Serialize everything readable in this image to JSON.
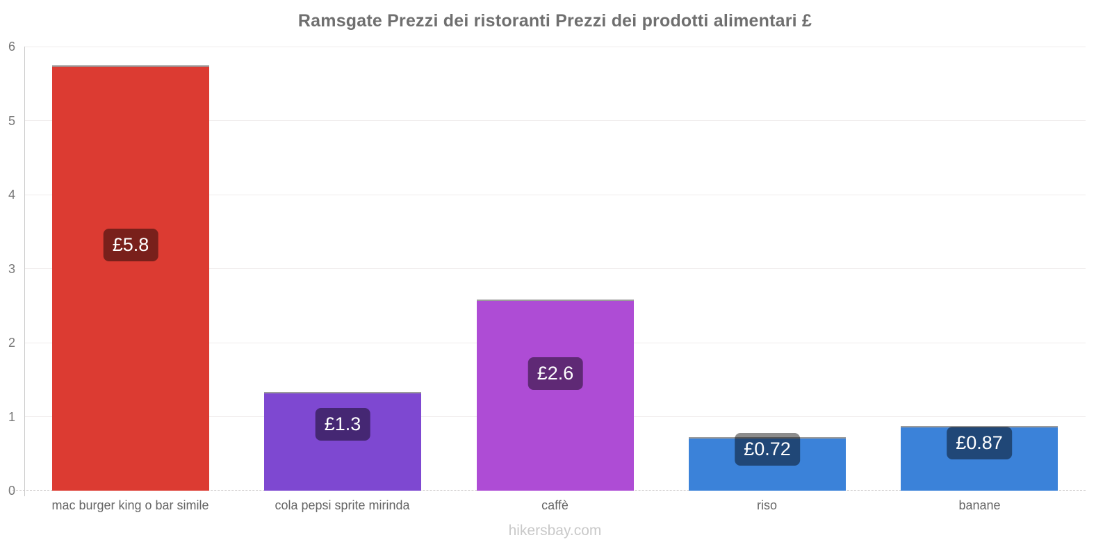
{
  "chart_data": {
    "type": "bar",
    "title": "Ramsgate Prezzi dei ristoranti Prezzi dei prodotti alimentari £",
    "xlabel": "",
    "ylabel": "",
    "currency": "£",
    "categories": [
      "mac burger king o bar simile",
      "cola pepsi sprite mirinda",
      "caffè",
      "riso",
      "banane"
    ],
    "values": [
      5.75,
      1.33,
      2.58,
      0.72,
      0.87
    ],
    "value_labels": [
      "£5.8",
      "£1.3",
      "£2.6",
      "£0.72",
      "£0.87"
    ],
    "bar_colors": [
      "#dc3b32",
      "#7e48d1",
      "#ae4cd5",
      "#3b82d9",
      "#3b82d9"
    ],
    "ylim": [
      0,
      6
    ],
    "yticks": [
      "0",
      "1",
      "2",
      "3",
      "4",
      "5",
      "6"
    ],
    "grid": true,
    "legend": false,
    "value_label_bg": "rgba(0,0,0,0.45)",
    "value_label_color": "#ffffff"
  },
  "footer": {
    "watermark": "hikersbay.com"
  },
  "colors": {
    "background": "#ffffff",
    "title": "#6f6f6f",
    "axis_line": "#c8c8c8",
    "gridline": "#efecec",
    "y_tick_label": "#777777",
    "x_tick_label": "#666666",
    "watermark": "#c9c9c9",
    "bar_top_border": "#9b9b9b"
  }
}
